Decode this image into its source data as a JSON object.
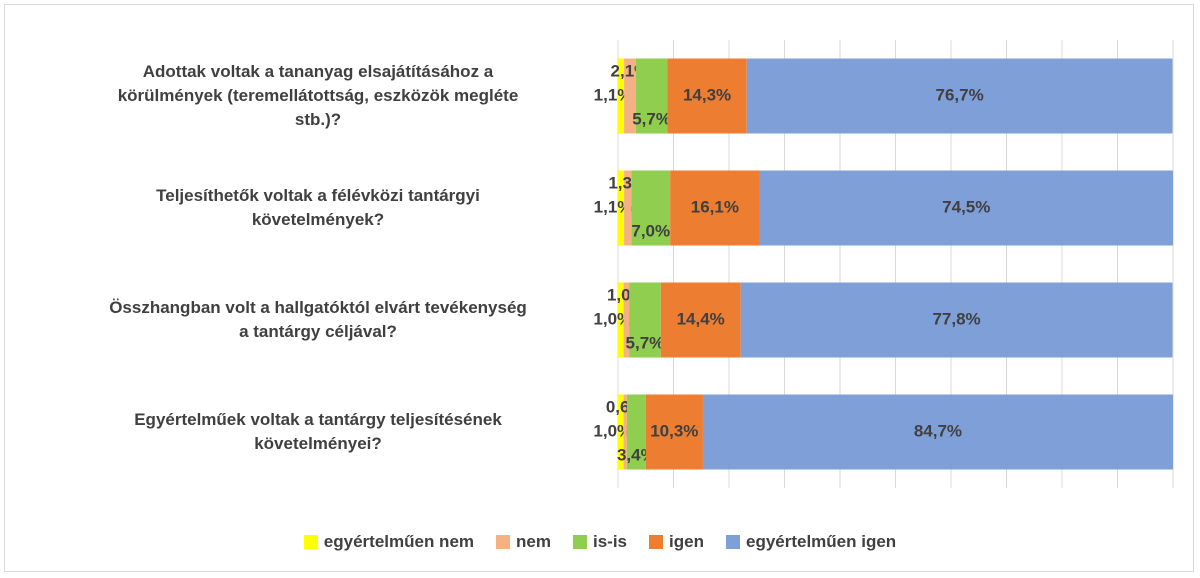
{
  "chart_data": {
    "type": "stacked-barh",
    "categories": [
      "Adottak voltak a tananyag elsajátításához a\nkörülmények (teremellátottság, eszközök megléte\nstb.)?",
      "Teljesíthetők voltak a félévközi tantárgyi\nkövetelmények?",
      "Összhangban volt a hallgatóktól elvárt tevékenység\na tantárgy céljával?",
      "Egyértelműek voltak a tantárgy teljesítésének\nkövetelményei?"
    ],
    "series": [
      {
        "name": "egyértelműen nem",
        "color": "#ffff00",
        "values": [
          1.1,
          1.1,
          1.0,
          1.0
        ],
        "value_labels": [
          "1,1%",
          "1,1%",
          "1,0%",
          "1,0%"
        ]
      },
      {
        "name": "nem",
        "color": "#f4b183",
        "values": [
          2.1,
          1.3,
          1.0,
          0.6
        ],
        "value_labels": [
          "2,1%",
          "1,3%",
          "1,0%",
          "0,6%"
        ]
      },
      {
        "name": "is-is",
        "color": "#8fce4e",
        "values": [
          5.7,
          7.0,
          5.7,
          3.4
        ],
        "value_labels": [
          "5,7%",
          "7,0%",
          "5,7%",
          "3,4%"
        ]
      },
      {
        "name": "igen",
        "color": "#ed7d31",
        "values": [
          14.3,
          16.1,
          14.4,
          10.3
        ],
        "value_labels": [
          "14,3%",
          "16,1%",
          "14,4%",
          "10,3%"
        ]
      },
      {
        "name": "egyértelműen igen",
        "color": "#7f9fd9",
        "values": [
          76.7,
          74.5,
          77.8,
          84.7
        ],
        "value_labels": [
          "76,7%",
          "74,5%",
          "77,8%",
          "84,7%"
        ]
      }
    ],
    "xlim": [
      0,
      100
    ],
    "xticks": [
      0,
      10,
      20,
      30,
      40,
      50,
      60,
      70,
      80,
      90,
      100
    ],
    "grid": true,
    "legend": "bottom"
  }
}
